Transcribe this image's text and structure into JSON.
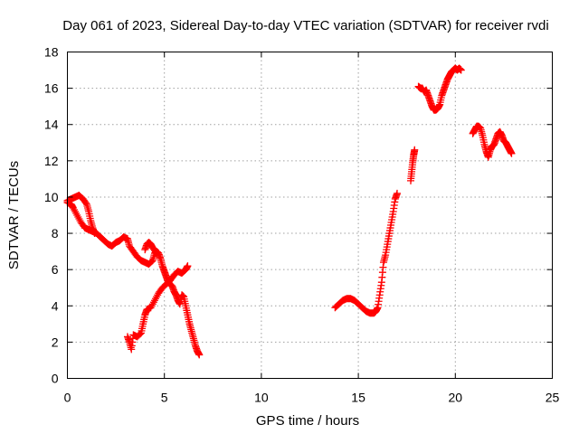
{
  "chart_data": {
    "type": "scatter",
    "title": "Day 061 of 2023, Sidereal Day-to-day VTEC variation (SDTVAR) for receiver rvdi",
    "xlabel": "GPS time / hours",
    "ylabel": "SDTVAR / TECUs",
    "xlim": [
      0,
      25
    ],
    "ylim": [
      0,
      18
    ],
    "xticks": [
      "0",
      "5",
      "10",
      "15",
      "20",
      "25"
    ],
    "yticks": [
      "0",
      "2",
      "4",
      "6",
      "8",
      "10",
      "12",
      "14",
      "16",
      "18"
    ],
    "grid": true,
    "marker": "+",
    "color": "#ff0000",
    "series": [
      {
        "segments": [
          [
            [
              0.0,
              9.8
            ],
            [
              0.2,
              9.9
            ],
            [
              0.4,
              10.0
            ],
            [
              0.6,
              10.1
            ],
            [
              0.8,
              9.9
            ],
            [
              1.0,
              9.6
            ],
            [
              1.1,
              9.2
            ],
            [
              1.2,
              8.7
            ],
            [
              1.3,
              8.3
            ],
            [
              1.4,
              8.0
            ]
          ],
          [
            [
              0.0,
              9.7
            ],
            [
              0.2,
              9.6
            ],
            [
              0.3,
              9.4
            ],
            [
              0.5,
              9.0
            ],
            [
              0.7,
              8.6
            ],
            [
              0.9,
              8.3
            ],
            [
              1.1,
              8.2
            ],
            [
              1.3,
              8.1
            ],
            [
              1.5,
              8.0
            ],
            [
              1.7,
              7.8
            ],
            [
              1.9,
              7.6
            ],
            [
              2.1,
              7.4
            ],
            [
              2.3,
              7.3
            ],
            [
              2.5,
              7.5
            ],
            [
              2.7,
              7.6
            ],
            [
              2.9,
              7.8
            ],
            [
              3.1,
              7.7
            ],
            [
              3.2,
              7.3
            ],
            [
              3.4,
              7.0
            ],
            [
              3.6,
              6.7
            ],
            [
              3.8,
              6.5
            ],
            [
              4.0,
              6.4
            ],
            [
              4.2,
              6.3
            ],
            [
              4.4,
              6.5
            ],
            [
              4.5,
              6.9
            ],
            [
              4.6,
              7.0
            ],
            [
              4.7,
              6.9
            ],
            [
              4.8,
              6.6
            ],
            [
              4.9,
              6.2
            ],
            [
              5.0,
              5.9
            ],
            [
              5.1,
              5.6
            ],
            [
              5.2,
              5.3
            ],
            [
              5.4,
              5.1
            ],
            [
              5.5,
              4.8
            ],
            [
              5.6,
              4.6
            ],
            [
              5.7,
              4.3
            ],
            [
              5.8,
              4.1
            ],
            [
              5.9,
              4.6
            ],
            [
              6.0,
              4.5
            ],
            [
              6.1,
              4.0
            ],
            [
              6.2,
              3.5
            ],
            [
              6.3,
              3.0
            ],
            [
              6.4,
              2.6
            ],
            [
              6.5,
              2.2
            ],
            [
              6.6,
              1.8
            ],
            [
              6.7,
              1.5
            ],
            [
              6.8,
              1.3
            ]
          ],
          [
            [
              3.1,
              2.3
            ],
            [
              3.2,
              2.0
            ],
            [
              3.3,
              1.6
            ],
            [
              3.4,
              2.4
            ],
            [
              3.6,
              2.3
            ],
            [
              3.8,
              2.5
            ],
            [
              3.9,
              3.0
            ],
            [
              4.0,
              3.5
            ],
            [
              4.1,
              3.8
            ],
            [
              4.3,
              3.9
            ],
            [
              4.5,
              4.3
            ],
            [
              4.7,
              4.7
            ],
            [
              4.9,
              5.0
            ],
            [
              5.1,
              5.2
            ],
            [
              5.3,
              5.4
            ],
            [
              5.5,
              5.7
            ],
            [
              5.7,
              5.9
            ],
            [
              5.9,
              5.8
            ],
            [
              6.1,
              6.0
            ],
            [
              6.2,
              6.2
            ]
          ],
          [
            [
              4.0,
              7.1
            ],
            [
              4.1,
              7.4
            ],
            [
              4.2,
              7.5
            ],
            [
              4.3,
              7.4
            ],
            [
              4.4,
              7.2
            ],
            [
              4.6,
              6.9
            ]
          ]
        ]
      },
      {
        "segments": [
          [
            [
              13.8,
              3.9
            ],
            [
              14.0,
              4.1
            ],
            [
              14.2,
              4.3
            ],
            [
              14.4,
              4.4
            ],
            [
              14.6,
              4.4
            ],
            [
              14.8,
              4.3
            ],
            [
              15.0,
              4.1
            ],
            [
              15.2,
              3.9
            ],
            [
              15.4,
              3.7
            ],
            [
              15.6,
              3.6
            ],
            [
              15.8,
              3.6
            ],
            [
              15.9,
              3.7
            ],
            [
              16.0,
              3.9
            ],
            [
              16.1,
              4.6
            ],
            [
              16.2,
              5.3
            ],
            [
              16.3,
              6.4
            ],
            [
              16.4,
              6.8
            ],
            [
              16.5,
              7.4
            ],
            [
              16.6,
              8.0
            ],
            [
              16.7,
              8.6
            ],
            [
              16.8,
              9.2
            ],
            [
              16.9,
              9.9
            ],
            [
              17.0,
              10.2
            ]
          ],
          [
            [
              17.7,
              10.9
            ],
            [
              17.75,
              11.4
            ],
            [
              17.8,
              11.9
            ],
            [
              17.85,
              12.3
            ],
            [
              17.9,
              12.6
            ]
          ],
          [
            [
              18.1,
              16.1
            ],
            [
              18.2,
              16.0
            ],
            [
              18.3,
              16.0
            ],
            [
              18.4,
              15.8
            ],
            [
              18.5,
              15.9
            ],
            [
              18.6,
              15.6
            ],
            [
              18.7,
              15.3
            ],
            [
              18.8,
              15.0
            ],
            [
              18.9,
              14.8
            ],
            [
              19.0,
              14.8
            ],
            [
              19.1,
              14.9
            ],
            [
              19.2,
              15.1
            ],
            [
              19.3,
              15.6
            ],
            [
              19.4,
              15.9
            ],
            [
              19.5,
              16.2
            ],
            [
              19.6,
              16.5
            ],
            [
              19.7,
              16.7
            ],
            [
              19.8,
              16.9
            ],
            [
              19.9,
              17.0
            ],
            [
              20.0,
              17.1
            ],
            [
              20.1,
              17.0
            ],
            [
              20.2,
              17.1
            ],
            [
              20.3,
              17.0
            ]
          ],
          [
            [
              20.9,
              13.5
            ],
            [
              21.0,
              13.7
            ],
            [
              21.1,
              13.9
            ],
            [
              21.2,
              13.9
            ],
            [
              21.3,
              13.8
            ],
            [
              21.4,
              13.4
            ],
            [
              21.5,
              12.9
            ],
            [
              21.6,
              12.5
            ],
            [
              21.7,
              12.2
            ],
            [
              21.8,
              12.6
            ],
            [
              21.9,
              12.8
            ],
            [
              22.0,
              12.9
            ],
            [
              22.1,
              13.2
            ],
            [
              22.2,
              13.5
            ],
            [
              22.3,
              13.6
            ],
            [
              22.4,
              13.4
            ],
            [
              22.5,
              13.1
            ],
            [
              22.6,
              13.0
            ],
            [
              22.7,
              12.8
            ],
            [
              22.8,
              12.6
            ],
            [
              22.9,
              12.4
            ]
          ]
        ]
      }
    ]
  }
}
